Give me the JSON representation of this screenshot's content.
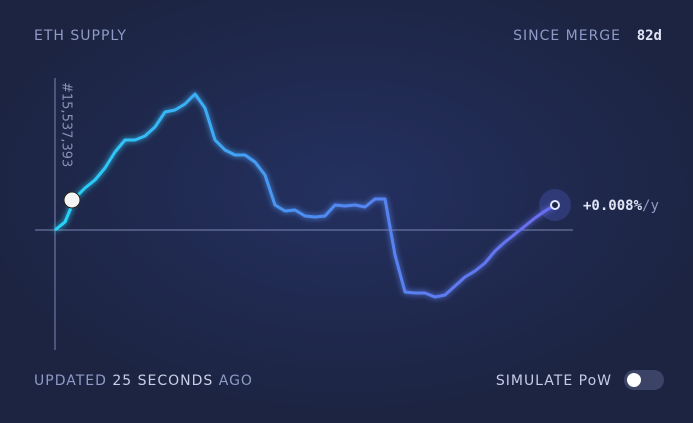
{
  "header": {
    "title": "ETH SUPPLY",
    "since_label": "SINCE MERGE",
    "since_value": "82d"
  },
  "chart_data": {
    "type": "line",
    "block_label": "#15,537,393",
    "end_label": "+0.008%",
    "end_unit": "/y",
    "x": [
      0,
      1.64,
      3.28,
      4.92,
      6.56,
      8.2,
      9.84,
      11.48,
      13.12,
      14.76,
      16.4,
      18.04,
      19.68,
      21.32,
      22.96,
      24.6,
      26.24,
      27.88,
      29.52,
      31.16,
      32.8,
      34.44,
      36.08,
      37.72,
      39.36,
      41,
      42.64,
      44.28,
      45.92,
      47.56,
      49.2,
      50.84,
      52.48,
      54.12,
      55.76,
      57.4,
      59.04,
      60.68,
      62.32,
      63.96,
      65.6,
      67.24,
      68.88,
      70.52,
      72.16,
      73.8,
      75.44,
      77.08,
      78.72,
      80.36,
      82
    ],
    "values": [
      0,
      8,
      32,
      42,
      50,
      62,
      78,
      90,
      90,
      94,
      103,
      118,
      120,
      126,
      136,
      122,
      90,
      80,
      75,
      75,
      68,
      55,
      25,
      19,
      20,
      14,
      13,
      14,
      25,
      24,
      25,
      23,
      31,
      31,
      -25,
      -62,
      -63,
      -63,
      -67,
      -65,
      -56,
      -47,
      -41,
      -33,
      -21,
      -12,
      -4,
      4,
      12,
      19,
      25
    ],
    "xlim": [
      0,
      82
    ],
    "ylim": [
      -80,
      160
    ],
    "colors": [
      "#26d6f9",
      "#4d8ef2",
      "#6a6ef0"
    ]
  },
  "footer": {
    "updated": "UPDATED",
    "ago_value": "25 SECONDS",
    "ago": "AGO",
    "simulate": "SIMULATE PoW"
  }
}
